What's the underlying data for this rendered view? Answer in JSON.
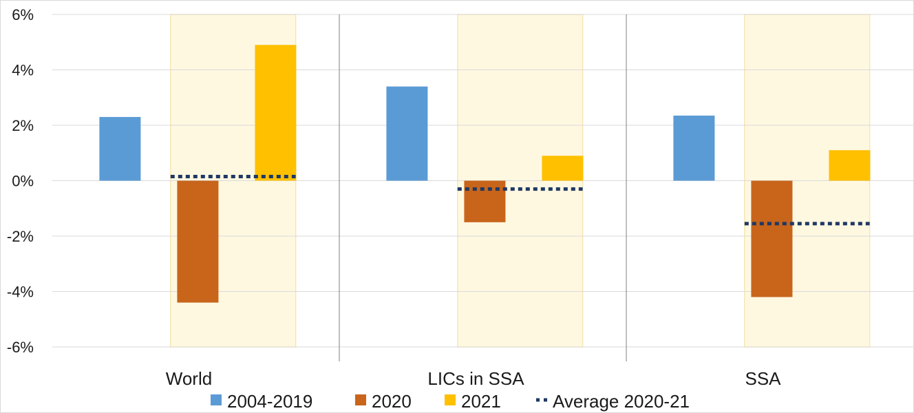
{
  "chart_data": {
    "type": "bar",
    "title": "",
    "xlabel": "",
    "ylabel": "",
    "ylim": [
      -6,
      6
    ],
    "yticks": [
      6,
      4,
      2,
      0,
      -2,
      -4,
      -6
    ],
    "ytick_labels": [
      "6%",
      "4%",
      "2%",
      "0%",
      "-2%",
      "-4%",
      "-6%"
    ],
    "grid": true,
    "legend_position": "bottom",
    "categories": [
      "World",
      "LICs in SSA",
      "SSA"
    ],
    "series": [
      {
        "name": "2004-2019",
        "color": "#5b9bd5",
        "values": [
          2.3,
          3.4,
          2.35
        ]
      },
      {
        "name": "2020",
        "color": "#c8651b",
        "values": [
          -4.4,
          -1.5,
          -4.2
        ]
      },
      {
        "name": "2021",
        "color": "#ffc000",
        "values": [
          4.9,
          0.9,
          1.1
        ]
      }
    ],
    "average_line": {
      "name": "Average 2020-21",
      "color": "#1f3864",
      "values": [
        0.15,
        -0.3,
        -1.55
      ]
    },
    "highlight_band_color": "#fff8e1"
  }
}
